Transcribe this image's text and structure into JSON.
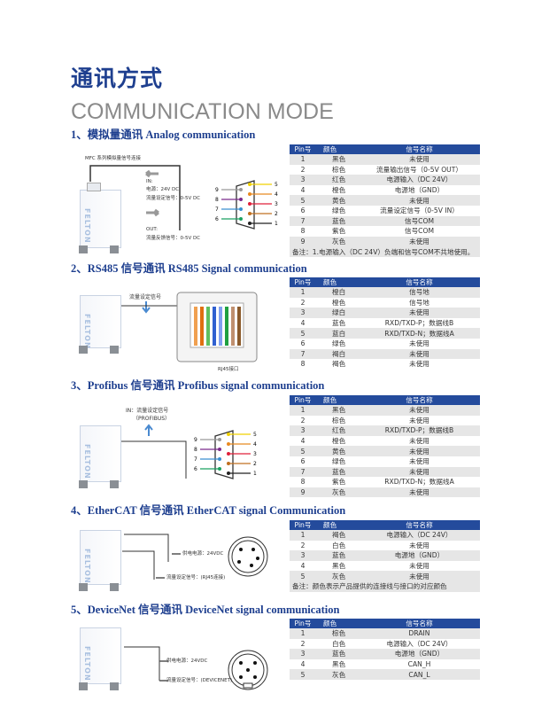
{
  "header": {
    "title_cn": "通讯方式",
    "title_en": "COMMUNICATION MODE"
  },
  "columns": [
    "Pin号",
    "颜色",
    "信号名称"
  ],
  "sections": [
    {
      "heading": "1、模拟量通讯 Analog communication",
      "diagram": {
        "caption": "MFC 系列模拟量信号连接",
        "in_label": "IN:",
        "in_power": "电源：24V DC",
        "in_set": "流量设定信号：0-5V DC",
        "out_label": "OUT:",
        "out_fb": "流量反馈信号：0-5V DC",
        "brand": "FELTON",
        "pins_left": [
          "9",
          "8",
          "7",
          "6"
        ],
        "pins_right": [
          "5",
          "4",
          "3",
          "2",
          "1"
        ]
      },
      "rows": [
        [
          "1",
          "黑色",
          "未使用"
        ],
        [
          "2",
          "棕色",
          "流量输出信号（0-5V OUT）"
        ],
        [
          "3",
          "红色",
          "电源输入（DC 24V）"
        ],
        [
          "4",
          "橙色",
          "电源地（GND）"
        ],
        [
          "5",
          "黄色",
          "未使用"
        ],
        [
          "6",
          "绿色",
          "流量设定信号（0-5V IN）"
        ],
        [
          "7",
          "蓝色",
          "信号COM"
        ],
        [
          "8",
          "紫色",
          "信号COM"
        ],
        [
          "9",
          "灰色",
          "未使用"
        ]
      ],
      "note": "备注：1.电源输入（DC 24V）负端和信号COM不共地使用。"
    },
    {
      "heading": "2、RS485 信号通讯 RS485 Signal communication",
      "diagram": {
        "signal": "流量设定信号",
        "connector": "RJ45接口",
        "brand": "FELTON"
      },
      "rows": [
        [
          "1",
          "橙白",
          "信号地"
        ],
        [
          "2",
          "橙色",
          "信号地"
        ],
        [
          "3",
          "绿白",
          "未使用"
        ],
        [
          "4",
          "蓝色",
          "RXD/TXD-P；数据线B"
        ],
        [
          "5",
          "蓝白",
          "RXD/TXD-N；数据线A"
        ],
        [
          "6",
          "绿色",
          "未使用"
        ],
        [
          "7",
          "褐白",
          "未使用"
        ],
        [
          "8",
          "褐色",
          "未使用"
        ]
      ]
    },
    {
      "heading": "3、Profibus 信号通讯 Profibus signal communication",
      "diagram": {
        "signal": "IN：流量设定信号",
        "signal2": "（PROFIBUS）",
        "brand": "FELTON",
        "pins_left": [
          "9",
          "8",
          "7",
          "6"
        ],
        "pins_right": [
          "5",
          "4",
          "3",
          "2",
          "1"
        ]
      },
      "rows": [
        [
          "1",
          "黑色",
          "未使用"
        ],
        [
          "2",
          "棕色",
          "未使用"
        ],
        [
          "3",
          "红色",
          "RXD/TXD-P；数据线B"
        ],
        [
          "4",
          "橙色",
          "未使用"
        ],
        [
          "5",
          "黄色",
          "未使用"
        ],
        [
          "6",
          "绿色",
          "未使用"
        ],
        [
          "7",
          "蓝色",
          "未使用"
        ],
        [
          "8",
          "紫色",
          "RXD/TXD-N；数据线A"
        ],
        [
          "9",
          "灰色",
          "未使用"
        ]
      ]
    },
    {
      "heading": "4、EtherCAT 信号通讯 EtherCAT signal Communication",
      "diagram": {
        "power": "供电电源：24VDC",
        "signal": "流量设定信号：(RJ45连接)",
        "brand": "FELTON"
      },
      "rows": [
        [
          "1",
          "褐色",
          "电源输入（DC 24V）"
        ],
        [
          "2",
          "白色",
          "未使用"
        ],
        [
          "3",
          "蓝色",
          "电源地（GND）"
        ],
        [
          "4",
          "黑色",
          "未使用"
        ],
        [
          "5",
          "灰色",
          "未使用"
        ]
      ],
      "note": "备注：颜色表示产品提供的连接线与接口的对应颜色"
    },
    {
      "heading": "5、DeviceNet 信号通讯 DeviceNet signal communication",
      "diagram": {
        "power": "供电电源：24VDC",
        "signal": "流量设定信号：(DEVICENET)",
        "brand": "FELTON"
      },
      "rows": [
        [
          "1",
          "棕色",
          "DRAIN"
        ],
        [
          "2",
          "白色",
          "电源输入（DC 24V）"
        ],
        [
          "3",
          "蓝色",
          "电源地（GND）"
        ],
        [
          "4",
          "黑色",
          "CAN_H"
        ],
        [
          "5",
          "灰色",
          "CAN_L"
        ]
      ]
    }
  ],
  "colors": {
    "brand_blue": "#1e3f8f",
    "table_header": "#244b9c",
    "row_stripe": "#e6e6e6"
  }
}
